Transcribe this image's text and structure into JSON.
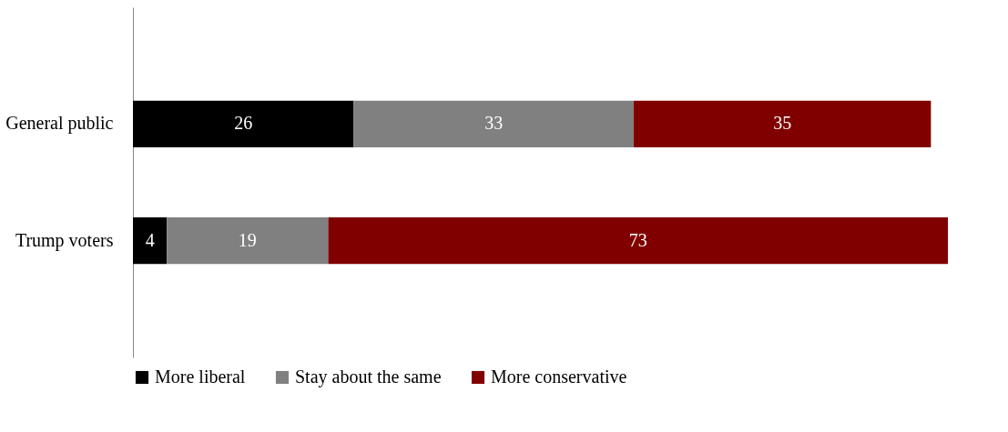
{
  "chart_data": {
    "type": "bar",
    "orientation": "horizontal",
    "stacked": true,
    "data_labels": true,
    "legend": "bottom",
    "grid": false,
    "categories": [
      "General public",
      "Trump voters"
    ],
    "series": [
      {
        "name": "More liberal",
        "color": "#000000",
        "values": [
          26,
          4
        ]
      },
      {
        "name": "Stay about the same",
        "color": "#808080",
        "values": [
          33,
          19
        ]
      },
      {
        "name": "More conservative",
        "color": "#800000",
        "values": [
          35,
          73
        ]
      }
    ]
  }
}
